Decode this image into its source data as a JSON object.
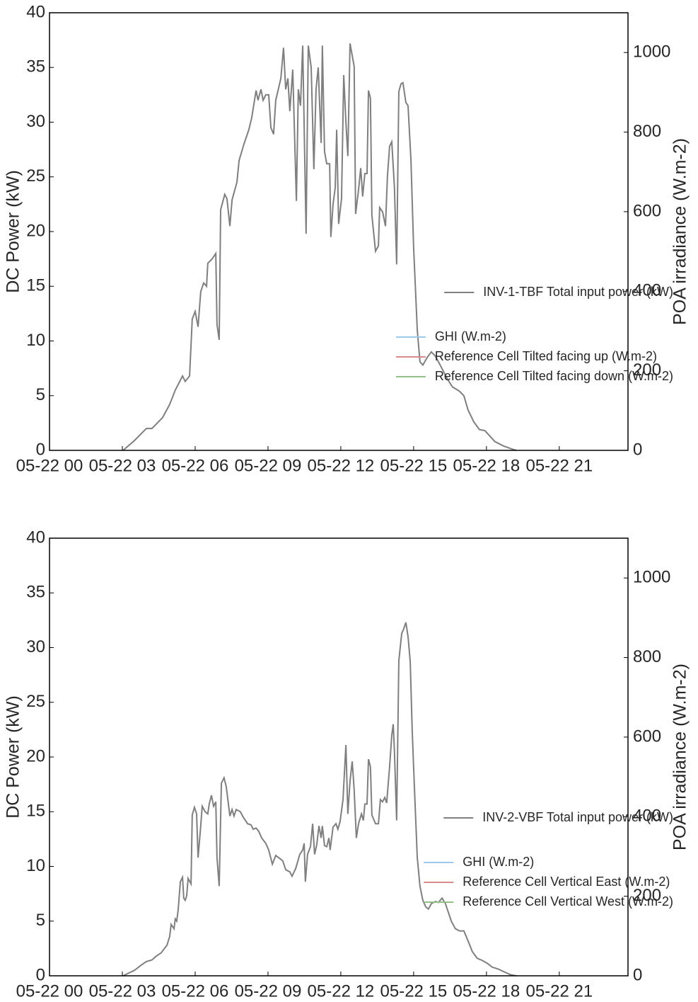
{
  "chart_data": [
    {
      "type": "line",
      "ylabel": "DC Power (kW)",
      "y2label": "POA irradiance (W.m-2)",
      "xlim": [
        0,
        23.83
      ],
      "xticks": [
        {
          "value": 0,
          "label": "05-22 00"
        },
        {
          "value": 3,
          "label": "05-22 03"
        },
        {
          "value": 6,
          "label": "05-22 06"
        },
        {
          "value": 9,
          "label": "05-22 09"
        },
        {
          "value": 12,
          "label": "05-22 12"
        },
        {
          "value": 15,
          "label": "05-22 15"
        },
        {
          "value": 18,
          "label": "05-22 18"
        },
        {
          "value": 21,
          "label": "05-22 21"
        }
      ],
      "ylim": [
        0,
        40
      ],
      "yticks": [
        0,
        5,
        10,
        15,
        20,
        25,
        30,
        35,
        40
      ],
      "y2lim": [
        0,
        1100
      ],
      "y2ticks": [
        0,
        200,
        400,
        600,
        800,
        1000
      ],
      "legend": "center right",
      "legend2": "lower right",
      "x": [
        3.03,
        3.5,
        3.99,
        4.22,
        4.66,
        4.95,
        5.18,
        5.48,
        5.59,
        5.77,
        5.88,
        6.0,
        6.12,
        6.23,
        6.35,
        6.47,
        6.52,
        6.7,
        6.85,
        6.9,
        6.99,
        7.05,
        7.22,
        7.31,
        7.43,
        7.52,
        7.72,
        7.81,
        8.01,
        8.21,
        8.33,
        8.51,
        8.59,
        8.71,
        8.8,
        8.91,
        9.03,
        9.12,
        9.23,
        9.32,
        9.53,
        9.64,
        9.73,
        9.82,
        9.9,
        10.02,
        10.17,
        10.25,
        10.34,
        10.43,
        10.57,
        10.66,
        10.78,
        10.89,
        10.98,
        11.07,
        11.19,
        11.24,
        11.33,
        11.42,
        11.54,
        11.59,
        11.68,
        11.77,
        11.83,
        11.91,
        12.03,
        12.12,
        12.21,
        12.29,
        12.38,
        12.55,
        12.61,
        12.73,
        12.82,
        12.9,
        12.99,
        13.08,
        13.14,
        13.22,
        13.28,
        13.43,
        13.55,
        13.6,
        13.72,
        13.84,
        13.92,
        14.01,
        14.1,
        14.21,
        14.3,
        14.39,
        14.48,
        14.56,
        14.68,
        14.77,
        14.89,
        15.0,
        15.15,
        15.26,
        15.38,
        15.56,
        15.73,
        15.9,
        16.14,
        16.37,
        16.6,
        16.89,
        17.07,
        17.24,
        17.48,
        17.71,
        17.94,
        18.06,
        18.35,
        18.7,
        19.08,
        19.23
      ],
      "series": [
        {
          "name": "INV-1-TBF Total input power (kW)",
          "color": "#7f7f7f",
          "values": [
            0,
            0.9,
            2.0,
            2.0,
            3.0,
            4.2,
            5.5,
            6.8,
            6.3,
            6.8,
            12.0,
            12.7,
            11.3,
            14.5,
            15.3,
            15.0,
            17.1,
            17.5,
            18.0,
            11.5,
            10.1,
            22.0,
            23.4,
            23.0,
            20.5,
            22.9,
            24.5,
            26.5,
            28.0,
            29.3,
            30.4,
            32.9,
            32.0,
            33.0,
            32.0,
            32.5,
            32.5,
            29.5,
            28.9,
            32.0,
            34.0,
            36.8,
            33.0,
            34.0,
            31.0,
            34.8,
            22.8,
            33.0,
            31.5,
            37.0,
            19.8,
            37.0,
            35.0,
            25.7,
            33.0,
            35.0,
            28.1,
            37.0,
            27.3,
            26.2,
            26.2,
            19.5,
            22.5,
            24.0,
            29.3,
            20.7,
            23.0,
            34.3,
            30.0,
            26.9,
            37.2,
            35.1,
            21.6,
            23.8,
            25.8,
            23.2,
            25.3,
            25.3,
            32.9,
            32.2,
            21.5,
            18.2,
            18.7,
            22.2,
            21.8,
            20.5,
            25.0,
            27.8,
            28.2,
            24.0,
            17.0,
            32.8,
            33.5,
            33.6,
            31.8,
            31.5,
            26.5,
            18.5,
            11.0,
            8.1,
            7.8,
            8.5,
            9.0,
            8.6,
            7.6,
            6.6,
            5.8,
            5.4,
            5.0,
            3.7,
            2.6,
            1.9,
            1.8,
            1.5,
            0.8,
            0.4,
            0.1,
            0
          ]
        },
        {
          "name": "GHI (W.m-2)",
          "color": "#9ecae9",
          "axis": "y2"
        },
        {
          "name": "Reference Cell Tilted facing up (W.m-2)",
          "color": "#d68a8a",
          "axis": "y2"
        },
        {
          "name": "Reference Cell Tilted facing down (W.m-2)",
          "color": "#93c08a",
          "axis": "y2"
        }
      ]
    },
    {
      "type": "line",
      "ylabel": "DC Power (kW)",
      "y2label": "POA irradiance (W.m-2)",
      "xlim": [
        0,
        23.83
      ],
      "xticks": [
        {
          "value": 0,
          "label": "05-22 00"
        },
        {
          "value": 3,
          "label": "05-22 03"
        },
        {
          "value": 6,
          "label": "05-22 06"
        },
        {
          "value": 9,
          "label": "05-22 09"
        },
        {
          "value": 12,
          "label": "05-22 12"
        },
        {
          "value": 15,
          "label": "05-22 15"
        },
        {
          "value": 18,
          "label": "05-22 18"
        },
        {
          "value": 21,
          "label": "05-22 21"
        }
      ],
      "ylim": [
        0,
        40
      ],
      "yticks": [
        0,
        5,
        10,
        15,
        20,
        25,
        30,
        35,
        40
      ],
      "y2lim": [
        0,
        1100
      ],
      "y2ticks": [
        0,
        200,
        400,
        600,
        800,
        1000
      ],
      "legend": "center right",
      "legend2": "lower right",
      "x": [
        3.03,
        3.5,
        3.79,
        3.99,
        4.22,
        4.37,
        4.6,
        4.84,
        4.95,
        5.01,
        5.13,
        5.18,
        5.24,
        5.3,
        5.39,
        5.48,
        5.53,
        5.59,
        5.65,
        5.71,
        5.83,
        5.88,
        5.97,
        6.06,
        6.12,
        6.23,
        6.29,
        6.41,
        6.52,
        6.58,
        6.67,
        6.76,
        6.85,
        6.9,
        6.99,
        7.08,
        7.19,
        7.28,
        7.37,
        7.43,
        7.52,
        7.6,
        7.69,
        7.86,
        7.98,
        8.16,
        8.3,
        8.39,
        8.51,
        8.62,
        8.74,
        8.91,
        9.03,
        9.18,
        9.32,
        9.5,
        9.61,
        9.73,
        9.9,
        9.99,
        10.14,
        10.31,
        10.43,
        10.49,
        10.54,
        10.63,
        10.75,
        10.84,
        10.92,
        11.01,
        11.1,
        11.19,
        11.24,
        11.33,
        11.42,
        11.51,
        11.56,
        11.68,
        11.8,
        11.88,
        11.97,
        12.09,
        12.21,
        12.29,
        12.38,
        12.47,
        12.55,
        12.64,
        12.73,
        12.85,
        12.93,
        12.99,
        13.08,
        13.14,
        13.22,
        13.28,
        13.43,
        13.55,
        13.63,
        13.72,
        13.81,
        13.89,
        14.01,
        14.1,
        14.16,
        14.21,
        14.3,
        14.39,
        14.51,
        14.59,
        14.68,
        14.77,
        14.86,
        14.94,
        15.03,
        15.15,
        15.26,
        15.38,
        15.5,
        15.61,
        15.73,
        15.9,
        16.02,
        16.17,
        16.31,
        16.43,
        16.55,
        16.72,
        16.89,
        17.07,
        17.24,
        17.42,
        17.62,
        17.83,
        18.06,
        18.23,
        18.5,
        18.79,
        18.99,
        19.23
      ],
      "series": [
        {
          "name": "INV-2-VBF Total input power (kW)",
          "color": "#7f7f7f",
          "values": [
            0,
            0.5,
            1.0,
            1.3,
            1.45,
            1.75,
            2.1,
            2.8,
            3.6,
            4.7,
            4.3,
            5.2,
            5.0,
            6.0,
            8.6,
            9.0,
            7.1,
            6.9,
            7.3,
            8.9,
            8.4,
            14.7,
            15.4,
            14.8,
            10.8,
            13.7,
            15.5,
            15.0,
            14.8,
            15.7,
            16.5,
            15.5,
            15.9,
            10.8,
            8.2,
            17.6,
            18.1,
            17.3,
            15.7,
            14.6,
            15.2,
            14.6,
            15.2,
            15.0,
            14.5,
            13.9,
            13.8,
            13.4,
            13.5,
            13.2,
            12.6,
            12.1,
            11.5,
            10.2,
            11.0,
            10.7,
            10.5,
            9.7,
            9.5,
            9.1,
            9.8,
            11.1,
            11.5,
            12.1,
            8.6,
            11.1,
            11.8,
            13.9,
            11.1,
            12.0,
            13.7,
            12.6,
            13.7,
            11.9,
            11.8,
            12.6,
            11.5,
            13.6,
            13.9,
            13.4,
            14.1,
            16.1,
            21.1,
            14.8,
            17.8,
            19.6,
            17.0,
            12.6,
            13.9,
            14.8,
            14.2,
            15.7,
            15.7,
            19.8,
            19.1,
            14.7,
            13.9,
            13.9,
            16.1,
            15.9,
            16.3,
            15.8,
            19.1,
            22.0,
            23.0,
            20.5,
            14.2,
            28.8,
            31.3,
            31.7,
            32.3,
            31.0,
            28.7,
            22.5,
            17.3,
            10.8,
            8.2,
            6.9,
            6.3,
            6.1,
            6.6,
            6.8,
            6.7,
            7.1,
            6.6,
            5.8,
            5.0,
            4.3,
            4.1,
            4.1,
            3.2,
            2.2,
            1.6,
            1.4,
            1.1,
            0.8,
            0.6,
            0.3,
            0.1,
            0
          ]
        },
        {
          "name": "GHI (W.m-2)",
          "color": "#9ecae9",
          "axis": "y2"
        },
        {
          "name": "Reference Cell Vertical East (W.m-2)",
          "color": "#d68a8a",
          "axis": "y2"
        },
        {
          "name": "Reference Cell Vertical West (W.m-2)",
          "color": "#93c08a",
          "axis": "y2"
        }
      ]
    }
  ]
}
